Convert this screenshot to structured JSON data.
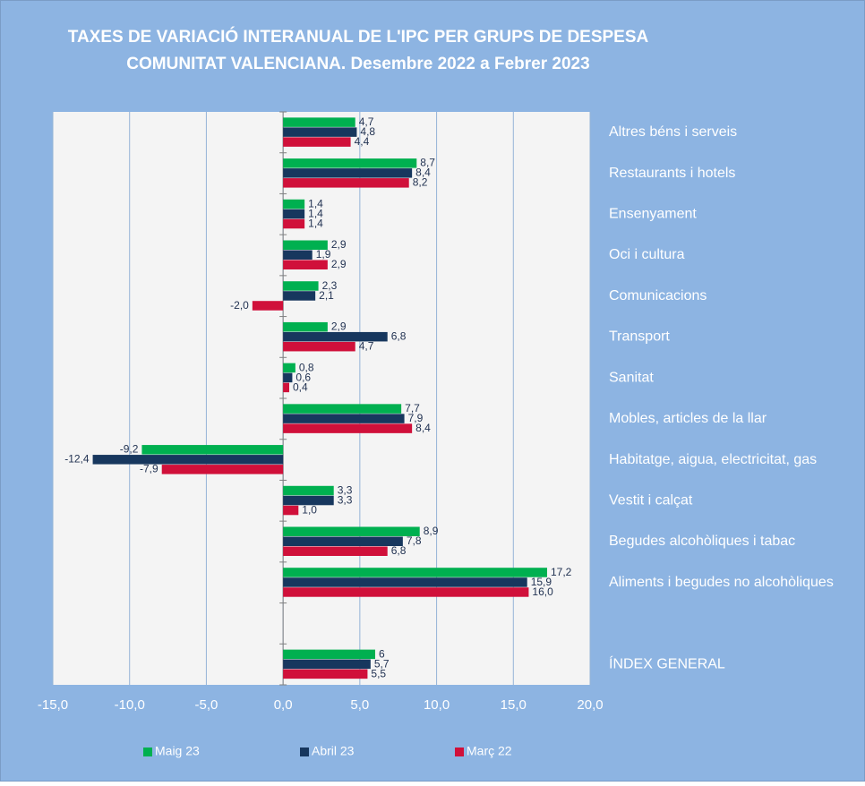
{
  "chart_data": {
    "type": "hbar",
    "title": "TAXES DE VARIACIÓ INTERANUAL DE L'IPC PER GRUPS DE DESPESA",
    "subtitle": "COMUNITAT VALENCIANA. Desembre 2022 a Febrer 2023",
    "categories": [
      "Altres béns i serveis",
      "Restaurants i hotels",
      "Ensenyament",
      "Oci i cultura",
      "Comunicacions",
      "Transport",
      "Sanitat",
      "Mobles, articles de la llar",
      "Habitatge, aigua, electricitat, gas",
      "Vestit i calçat",
      "Begudes alcohòliques i tabac",
      "Aliments i begudes no alcohòliques",
      null,
      "ÍNDEX GENERAL"
    ],
    "series": [
      {
        "name": "Maig 23",
        "color": "#00b050",
        "values": [
          4.7,
          8.7,
          1.4,
          2.9,
          2.3,
          2.9,
          0.8,
          7.7,
          -9.2,
          3.3,
          8.9,
          17.2,
          null,
          6
        ],
        "value_labels": [
          "4,7",
          "8,7",
          "1,4",
          "2,9",
          "2,3",
          "2,9",
          "0,8",
          "7,7",
          "-9,2",
          "3,3",
          "8,9",
          "17,2",
          null,
          "6"
        ]
      },
      {
        "name": "Abril 23",
        "color": "#17375e",
        "values": [
          4.8,
          8.4,
          1.4,
          1.9,
          2.1,
          6.8,
          0.6,
          7.9,
          -12.4,
          3.3,
          7.8,
          15.9,
          null,
          5.7
        ],
        "value_labels": [
          "4,8",
          "8,4",
          "1,4",
          "1,9",
          "2,1",
          "6,8",
          "0,6",
          "7,9",
          "-12,4",
          "3,3",
          "7,8",
          "15,9",
          null,
          "5,7"
        ]
      },
      {
        "name": "Març 22",
        "color": "#d0103a",
        "values": [
          4.4,
          8.2,
          1.4,
          2.9,
          -2.0,
          4.7,
          0.4,
          8.4,
          -7.9,
          1.0,
          6.8,
          16.0,
          null,
          5.5
        ],
        "value_labels": [
          "4,4",
          "8,2",
          "1,4",
          "2,9",
          "-2,0",
          "4,7",
          "0,4",
          "8,4",
          "-7,9",
          "1,0",
          "6,8",
          "16,0",
          null,
          "5,5"
        ]
      }
    ],
    "xlim": [
      -15,
      20
    ],
    "xticks": [
      {
        "value": -15,
        "label": "-15,0"
      },
      {
        "value": -10,
        "label": "-10,0"
      },
      {
        "value": -5,
        "label": "-5,0"
      },
      {
        "value": 0,
        "label": "0,0"
      },
      {
        "value": 5,
        "label": "5,0"
      },
      {
        "value": 10,
        "label": "10,0"
      },
      {
        "value": 15,
        "label": "15,0"
      },
      {
        "value": 20,
        "label": "20,0"
      }
    ],
    "grid": true,
    "legend": "bottom"
  }
}
